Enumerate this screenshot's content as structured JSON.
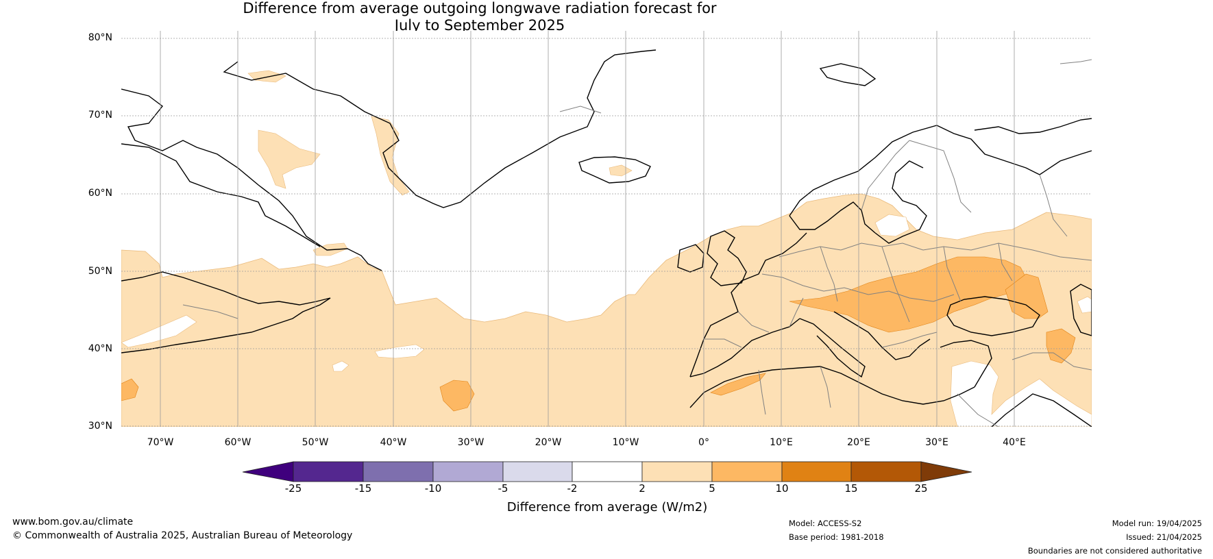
{
  "title": {
    "line1": "Difference from average outgoing longwave radiation forecast for",
    "line2": "July to September 2025"
  },
  "map": {
    "lat_labels": [
      "80°N",
      "70°N",
      "60°N",
      "50°N",
      "40°N",
      "30°N"
    ],
    "lon_labels": [
      "70°W",
      "60°W",
      "50°W",
      "40°W",
      "30°W",
      "20°W",
      "10°W",
      "0°",
      "10°E",
      "20°E",
      "30°E",
      "40°E"
    ],
    "bounds": {
      "lon_min": -75,
      "lon_max": 50,
      "lat_min": 30,
      "lat_max": 81
    },
    "colors": {
      "land_outline": "#000000",
      "country_border": "#808080",
      "grid": "#9a9a9a"
    }
  },
  "colorbar": {
    "title": "Difference from average (W/m2)",
    "ticks": [
      "-25",
      "-15",
      "-10",
      "-5",
      "-2",
      "2",
      "5",
      "10",
      "15",
      "25"
    ],
    "colors": [
      "#3f007d",
      "#54278f",
      "#7e6fae",
      "#b1a9d4",
      "#dadaeb",
      "#ffffff",
      "#fde0b5",
      "#fdb863",
      "#e08214",
      "#b35806",
      "#7f3b08"
    ]
  },
  "footer": {
    "url": "www.bom.gov.au/climate",
    "copyright": "© Commonwealth of Australia 2025, Australian Bureau of Meteorology",
    "model": "Model: ACCESS-S2",
    "base_period": "Base period: 1981-2018",
    "model_run": "Model run: 19/04/2025",
    "issued": "Issued: 21/04/2025",
    "disclaimer": "Boundaries are not considered authoritative"
  }
}
